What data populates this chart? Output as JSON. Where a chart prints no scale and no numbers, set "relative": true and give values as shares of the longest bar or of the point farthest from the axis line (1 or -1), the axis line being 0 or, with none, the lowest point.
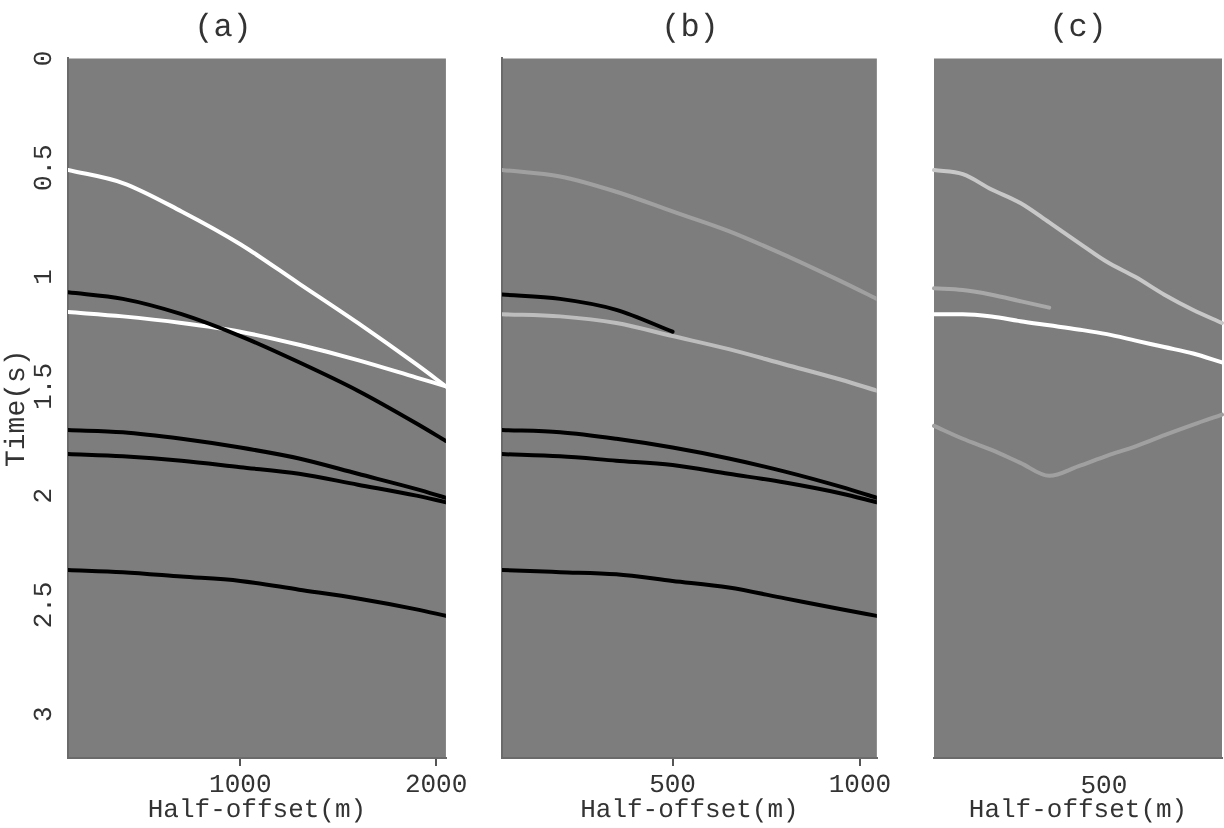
{
  "chart_data": [
    {
      "type": "line",
      "title": "(a)",
      "xlabel": "Half-offset(m)",
      "ylabel": "Time(s)",
      "x": [
        120,
        400,
        700,
        1000,
        1300,
        1600,
        1900,
        2050
      ],
      "xlim": [
        120,
        2050
      ],
      "xticks": [
        1000,
        2000
      ],
      "ylim": [
        3.2,
        0
      ],
      "yticks": [
        0,
        0.5,
        1,
        1.5,
        2,
        2.5,
        3
      ],
      "marker": "none",
      "series": [
        {
          "color": "#ffffff",
          "values": [
            0.51,
            0.57,
            0.7,
            0.85,
            1.03,
            1.21,
            1.4,
            1.5
          ]
        },
        {
          "color": "#000000",
          "values": [
            1.07,
            1.1,
            1.17,
            1.27,
            1.39,
            1.52,
            1.67,
            1.75
          ]
        },
        {
          "color": "#ffffff",
          "values": [
            1.16,
            1.18,
            1.21,
            1.25,
            1.31,
            1.38,
            1.46,
            1.5
          ]
        },
        {
          "color": "#000000",
          "values": [
            1.7,
            1.71,
            1.74,
            1.78,
            1.83,
            1.9,
            1.97,
            2.01
          ]
        },
        {
          "color": "#000000",
          "values": [
            1.81,
            1.82,
            1.84,
            1.87,
            1.9,
            1.95,
            2.0,
            2.03
          ]
        },
        {
          "color": "#000000",
          "values": [
            2.34,
            2.35,
            2.37,
            2.39,
            2.43,
            2.47,
            2.52,
            2.55
          ]
        }
      ]
    },
    {
      "type": "line",
      "title": "(b)",
      "xlabel": "Half-offset(m)",
      "x": [
        45,
        200,
        350,
        500,
        650,
        800,
        950,
        1045
      ],
      "xlim": [
        45,
        1045
      ],
      "xticks": [
        500,
        1000
      ],
      "ylim": [
        3.2,
        0
      ],
      "tick_labels": "x",
      "marker": "none",
      "series": [
        {
          "color": "#a0a0a0",
          "values": [
            0.51,
            0.54,
            0.61,
            0.7,
            0.79,
            0.9,
            1.02,
            1.1
          ]
        },
        {
          "color": "#000000",
          "values": [
            1.08,
            1.1,
            1.15,
            1.25,
            null,
            null,
            null,
            null
          ]
        },
        {
          "color": "#bdbdbd",
          "values": [
            1.17,
            1.18,
            1.21,
            1.27,
            1.33,
            1.4,
            1.47,
            1.52
          ]
        },
        {
          "color": "#000000",
          "values": [
            1.7,
            1.71,
            1.74,
            1.78,
            1.83,
            1.89,
            1.96,
            2.01
          ]
        },
        {
          "color": "#000000",
          "values": [
            1.81,
            1.82,
            1.84,
            1.86,
            1.9,
            1.94,
            1.99,
            2.03
          ]
        },
        {
          "color": "#000000",
          "values": [
            2.34,
            2.35,
            2.36,
            2.39,
            2.42,
            2.47,
            2.52,
            2.55
          ]
        }
      ]
    },
    {
      "type": "line",
      "title": "(c)",
      "xlabel": "Half-offset(m)",
      "categories": [
        null,
        null,
        null,
        null,
        null,
        null,
        null,
        null,
        null,
        null,
        null
      ],
      "relative": true,
      "tick_labels": false,
      "marker": "none",
      "annotations": [
        "500"
      ],
      "series": [
        {
          "color": "#c8c8c8",
          "values": [
            1,
            0.993,
            0.967,
            0.944,
            0.911,
            0.877,
            0.844,
            0.818,
            0.788,
            0.762,
            0.74
          ]
        },
        {
          "color": "#a8a8a8",
          "values": [
            0.799,
            0.796,
            0.788,
            0.777,
            0.766,
            null,
            null,
            null,
            null,
            null,
            null
          ]
        },
        {
          "color": "#ffffff",
          "values": [
            0.755,
            0.755,
            0.751,
            0.743,
            0.736,
            0.729,
            0.721,
            0.71,
            0.699,
            0.688,
            0.673
          ]
        },
        {
          "color": "#a0a0a0",
          "values": [
            0.565,
            0.543,
            0.524,
            0.502,
            0.48,
            0.496,
            0.514,
            0.53,
            0.549,
            0.567,
            0.584
          ]
        }
      ]
    }
  ]
}
